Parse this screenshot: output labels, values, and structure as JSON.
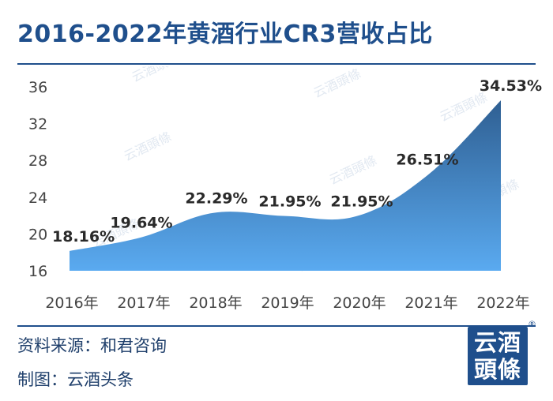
{
  "title": "2016-2022年黄酒行业CR3营收占比",
  "footer": {
    "source": "资料来源：和君咨询",
    "made_by": "制图：云酒头条"
  },
  "logo": {
    "line1": "云酒",
    "line2": "頭條",
    "reg_mark": "®"
  },
  "watermark_text": "云酒頭條",
  "colors": {
    "accent": "#1f4f8c",
    "area_top": "#2f5f92",
    "area_bottom": "#5aaaf0"
  },
  "chart_data": {
    "type": "area",
    "categories": [
      "2016年",
      "2017年",
      "2018年",
      "2019年",
      "2020年",
      "2021年",
      "2022年"
    ],
    "series": [
      {
        "values": [
          18.16,
          19.64,
          22.29,
          21.95,
          21.95,
          26.51,
          34.53
        ]
      }
    ],
    "data_labels": [
      "18.16%",
      "19.64%",
      "22.29%",
      "21.95%",
      "21.95%",
      "26.51%",
      "34.53%"
    ],
    "yticks": [
      16,
      20,
      24,
      28,
      32,
      36
    ],
    "ylim": [
      16,
      36
    ],
    "title": "2016-2022年黄酒行业CR3营收占比",
    "xlabel": "",
    "ylabel": "",
    "grid": false,
    "smooth": true
  }
}
